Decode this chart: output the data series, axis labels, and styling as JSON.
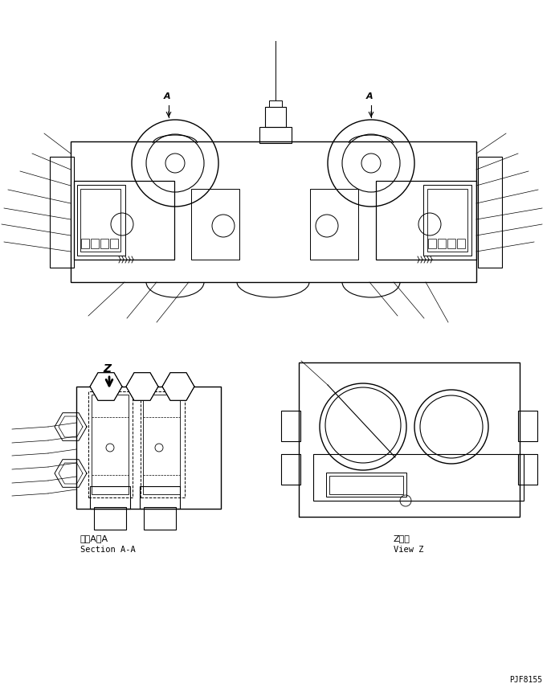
{
  "bg_color": "#ffffff",
  "line_color": "#000000",
  "fig_width": 6.86,
  "fig_height": 8.71,
  "part_number": "PJF8155",
  "label_section_aa_jp": "断面A－A",
  "label_section_aa_en": "Section A-A",
  "label_view_z_jp": "Z　視",
  "label_view_z_en": "View Z"
}
